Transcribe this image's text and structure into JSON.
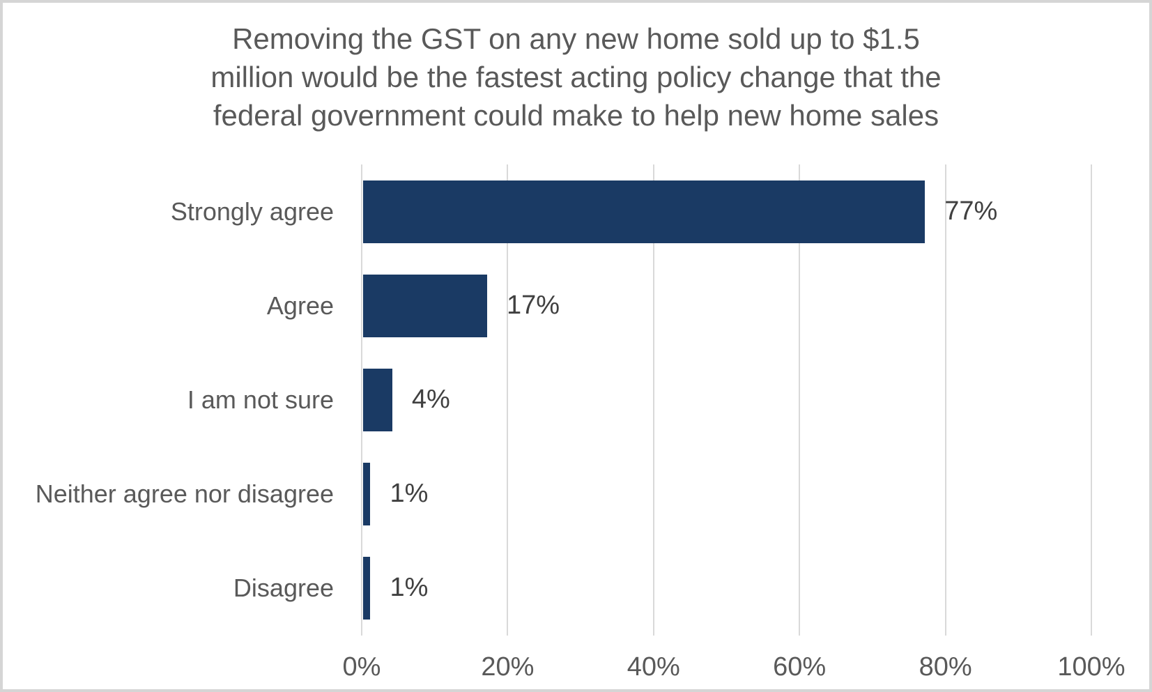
{
  "title": {
    "lines": [
      "Removing the GST on any new home sold up to $1.5",
      "million would be the fastest acting policy change that the",
      "federal government could make to help new home sales"
    ],
    "color": "#595959"
  },
  "chart_data": {
    "type": "bar",
    "orientation": "horizontal",
    "title": "Removing the GST on any new home sold up to $1.5 million would be the fastest acting policy change that the federal government could make to help new home sales",
    "categories": [
      "Strongly agree",
      "Agree",
      "I am not sure",
      "Neither agree nor disagree",
      "Disagree"
    ],
    "values": [
      77,
      17,
      4,
      1,
      1
    ],
    "value_labels": [
      "77%",
      "17%",
      "4%",
      "1%",
      "1%"
    ],
    "xlabel": "",
    "ylabel": "",
    "xlim": [
      0,
      100
    ],
    "x_tick_values": [
      0,
      20,
      40,
      60,
      80,
      100
    ],
    "x_tick_labels": [
      "0%",
      "20%",
      "40%",
      "60%",
      "80%",
      "100%"
    ],
    "grid": true,
    "legend": "none",
    "colors": {
      "bar": "#1a3a64",
      "gridline": "#d9d9d9",
      "category_text": "#595959",
      "tick_text": "#595959",
      "value_text": "#404040",
      "title_text": "#595959",
      "frame_border": "#d5d5d5",
      "background": "#ffffff"
    }
  }
}
